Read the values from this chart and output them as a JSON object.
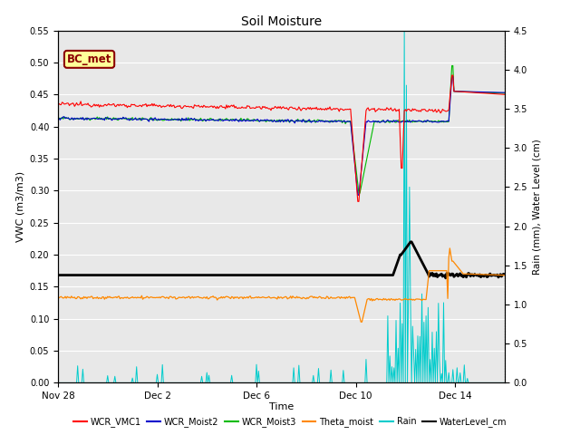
{
  "title": "Soil Moisture",
  "xlabel": "Time",
  "ylabel_left": "VWC (m3/m3)",
  "ylabel_right": "Rain (mm), Water Level (cm)",
  "ylim_left": [
    0.0,
    0.55
  ],
  "ylim_right": [
    0.0,
    4.5
  ],
  "yticks_left": [
    0.0,
    0.05,
    0.1,
    0.15,
    0.2,
    0.25,
    0.3,
    0.35,
    0.4,
    0.45,
    0.5,
    0.55
  ],
  "yticks_right": [
    0.0,
    0.5,
    1.0,
    1.5,
    2.0,
    2.5,
    3.0,
    3.5,
    4.0,
    4.5
  ],
  "background_color": "#e8e8e8",
  "grid_color": "#ffffff",
  "annotation_text": "BC_met",
  "annotation_box_color": "#ffff99",
  "annotation_box_edge": "#8b0000",
  "xlim": [
    0,
    18
  ],
  "xtick_positions": [
    0,
    4,
    8,
    12,
    16
  ],
  "xtick_labels": [
    "Nov 28",
    "Dec 2",
    "Dec 6",
    "Dec 10",
    "Dec 14"
  ],
  "scale": 0.12222,
  "legend_items": [
    {
      "label": "WCR_VMC1",
      "color": "#ff0000"
    },
    {
      "label": "WCR_Moist2",
      "color": "#0000cc"
    },
    {
      "label": "WCR_Moist3",
      "color": "#00bb00"
    },
    {
      "label": "Theta_moist",
      "color": "#ff8800"
    },
    {
      "label": "Rain",
      "color": "#00cccc"
    },
    {
      "label": "WaterLevel_cm",
      "color": "#000000"
    }
  ]
}
